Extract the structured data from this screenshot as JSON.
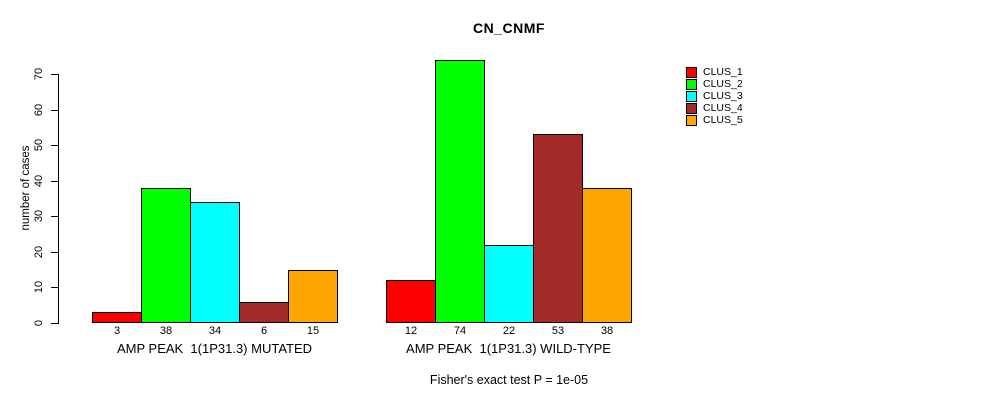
{
  "title": "CN_CNMF",
  "ylabel": "number of cases",
  "footer": "Fisher's exact test P = 1e-05",
  "legend": {
    "position": "right",
    "items": [
      {
        "label": "CLUS_1",
        "color": "#FF0000"
      },
      {
        "label": "CLUS_2",
        "color": "#00FF00"
      },
      {
        "label": "CLUS_3",
        "color": "#00FFFF"
      },
      {
        "label": "CLUS_4",
        "color": "#A52A2A"
      },
      {
        "label": "CLUS_5",
        "color": "#FFA500"
      }
    ]
  },
  "chart_data": {
    "type": "bar",
    "title": "CN_CNMF",
    "xlabel": "",
    "ylabel": "number of cases",
    "ylim": [
      0,
      70
    ],
    "yticks": [
      0,
      10,
      20,
      30,
      40,
      50,
      60,
      70
    ],
    "grid": false,
    "legend_position": "right",
    "categories": [
      "AMP PEAK  1(1P31.3) MUTATED",
      "AMP PEAK  1(1P31.3) WILD-TYPE"
    ],
    "series": [
      {
        "name": "CLUS_1",
        "color": "#FF0000",
        "values": [
          3,
          12
        ]
      },
      {
        "name": "CLUS_2",
        "color": "#00FF00",
        "values": [
          38,
          74
        ]
      },
      {
        "name": "CLUS_3",
        "color": "#00FFFF",
        "values": [
          34,
          22
        ]
      },
      {
        "name": "CLUS_4",
        "color": "#A52A2A",
        "values": [
          6,
          53
        ]
      },
      {
        "name": "CLUS_5",
        "color": "#FFA500",
        "values": [
          15,
          38
        ]
      }
    ],
    "bar_value_labels": [
      [
        3,
        38,
        34,
        6,
        15
      ],
      [
        12,
        74,
        22,
        53,
        38
      ]
    ],
    "annotation": "Fisher's exact test P = 1e-05"
  }
}
